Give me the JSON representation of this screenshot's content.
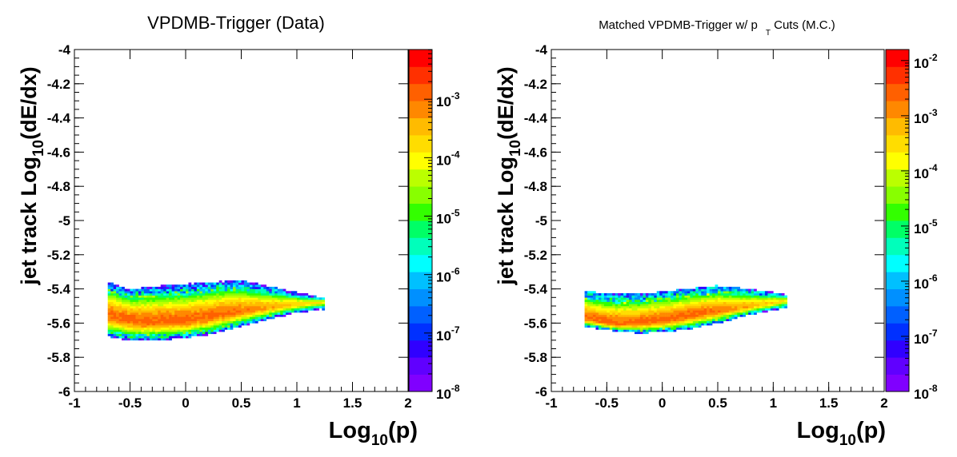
{
  "chart_data": [
    {
      "type": "heatmap",
      "title": "VPDMB-Trigger (Data)",
      "xlabel": {
        "base": "Log",
        "sub": "10",
        "rest": "(p)"
      },
      "ylabel": {
        "base": "jet track Log",
        "sub": "10",
        "rest": "(dE/dx)"
      },
      "xlim": [
        -1,
        2
      ],
      "ylim": [
        -6,
        -4
      ],
      "x_ticks": [
        "-1",
        "-0.5",
        "0",
        "0.5",
        "1",
        "1.5",
        "2"
      ],
      "y_ticks": [
        "-6",
        "-5.8",
        "-5.6",
        "-5.4",
        "-5.2",
        "-5",
        "-4.8",
        "-4.6",
        "-4.4",
        "-4.2",
        "-4"
      ],
      "colorbar": {
        "scale": "log",
        "range_exponent": [
          -8,
          -2.15
        ],
        "labels": [
          {
            "base": "10",
            "exp": "-8"
          },
          {
            "base": "10",
            "exp": "-7"
          },
          {
            "base": "10",
            "exp": "-6"
          },
          {
            "base": "10",
            "exp": "-5"
          },
          {
            "base": "10",
            "exp": "-4"
          },
          {
            "base": "10",
            "exp": "-3"
          }
        ]
      },
      "band": {
        "x_range": [
          -0.7,
          1.25
        ],
        "centerline": [
          [
            -0.7,
            -5.555
          ],
          [
            -0.4,
            -5.59
          ],
          [
            0,
            -5.585
          ],
          [
            0.3,
            -5.55
          ],
          [
            0.6,
            -5.52
          ],
          [
            1.0,
            -5.49
          ],
          [
            1.25,
            -5.475
          ]
        ],
        "upper_edge": [
          [
            -0.7,
            -5.36
          ],
          [
            -0.5,
            -5.4
          ],
          [
            -0.2,
            -5.38
          ],
          [
            0.2,
            -5.36
          ],
          [
            0.5,
            -5.35
          ],
          [
            0.8,
            -5.39
          ],
          [
            1.0,
            -5.42
          ],
          [
            1.25,
            -5.45
          ]
        ],
        "lower_edge": [
          [
            -0.7,
            -5.68
          ],
          [
            -0.5,
            -5.7
          ],
          [
            -0.2,
            -5.7
          ],
          [
            0.2,
            -5.67
          ],
          [
            0.5,
            -5.62
          ],
          [
            0.8,
            -5.57
          ],
          [
            1.0,
            -5.54
          ],
          [
            1.25,
            -5.52
          ]
        ],
        "peak_exponent": -2.3
      }
    },
    {
      "type": "heatmap",
      "title": {
        "pre": "Matched VPDMB-Trigger w/ p",
        "sub": "T",
        "post": " Cuts (M.C.)"
      },
      "xlabel": {
        "base": "Log",
        "sub": "10",
        "rest": "(p)"
      },
      "ylabel": {
        "base": "jet track Log",
        "sub": "10",
        "rest": "(dE/dx)"
      },
      "xlim": [
        -1,
        2
      ],
      "ylim": [
        -6,
        -4
      ],
      "x_ticks": [
        "-1",
        "-0.5",
        "0",
        "0.5",
        "1",
        "1.5",
        "2"
      ],
      "y_ticks": [
        "-6",
        "-5.8",
        "-5.6",
        "-5.4",
        "-5.2",
        "-5",
        "-4.8",
        "-4.6",
        "-4.4",
        "-4.2",
        "-4"
      ],
      "colorbar": {
        "scale": "log",
        "range_exponent": [
          -8,
          -1.8
        ],
        "labels": [
          {
            "base": "10",
            "exp": "-8"
          },
          {
            "base": "10",
            "exp": "-7"
          },
          {
            "base": "10",
            "exp": "-6"
          },
          {
            "base": "10",
            "exp": "-5"
          },
          {
            "base": "10",
            "exp": "-4"
          },
          {
            "base": "10",
            "exp": "-3"
          },
          {
            "base": "10",
            "exp": "-2"
          }
        ]
      },
      "band": {
        "x_range": [
          -0.7,
          1.12
        ],
        "centerline": [
          [
            -0.7,
            -5.57
          ],
          [
            -0.4,
            -5.605
          ],
          [
            0,
            -5.585
          ],
          [
            0.3,
            -5.55
          ],
          [
            0.6,
            -5.52
          ],
          [
            0.9,
            -5.49
          ],
          [
            1.12,
            -5.47
          ]
        ],
        "upper_edge": [
          [
            -0.7,
            -5.41
          ],
          [
            -0.5,
            -5.43
          ],
          [
            -0.2,
            -5.43
          ],
          [
            0.2,
            -5.4
          ],
          [
            0.5,
            -5.38
          ],
          [
            0.8,
            -5.4
          ],
          [
            1.12,
            -5.43
          ]
        ],
        "lower_edge": [
          [
            -0.7,
            -5.62
          ],
          [
            -0.5,
            -5.64
          ],
          [
            -0.2,
            -5.66
          ],
          [
            0.2,
            -5.64
          ],
          [
            0.5,
            -5.6
          ],
          [
            0.8,
            -5.55
          ],
          [
            1.12,
            -5.51
          ]
        ],
        "peak_exponent": -2.0
      }
    }
  ]
}
